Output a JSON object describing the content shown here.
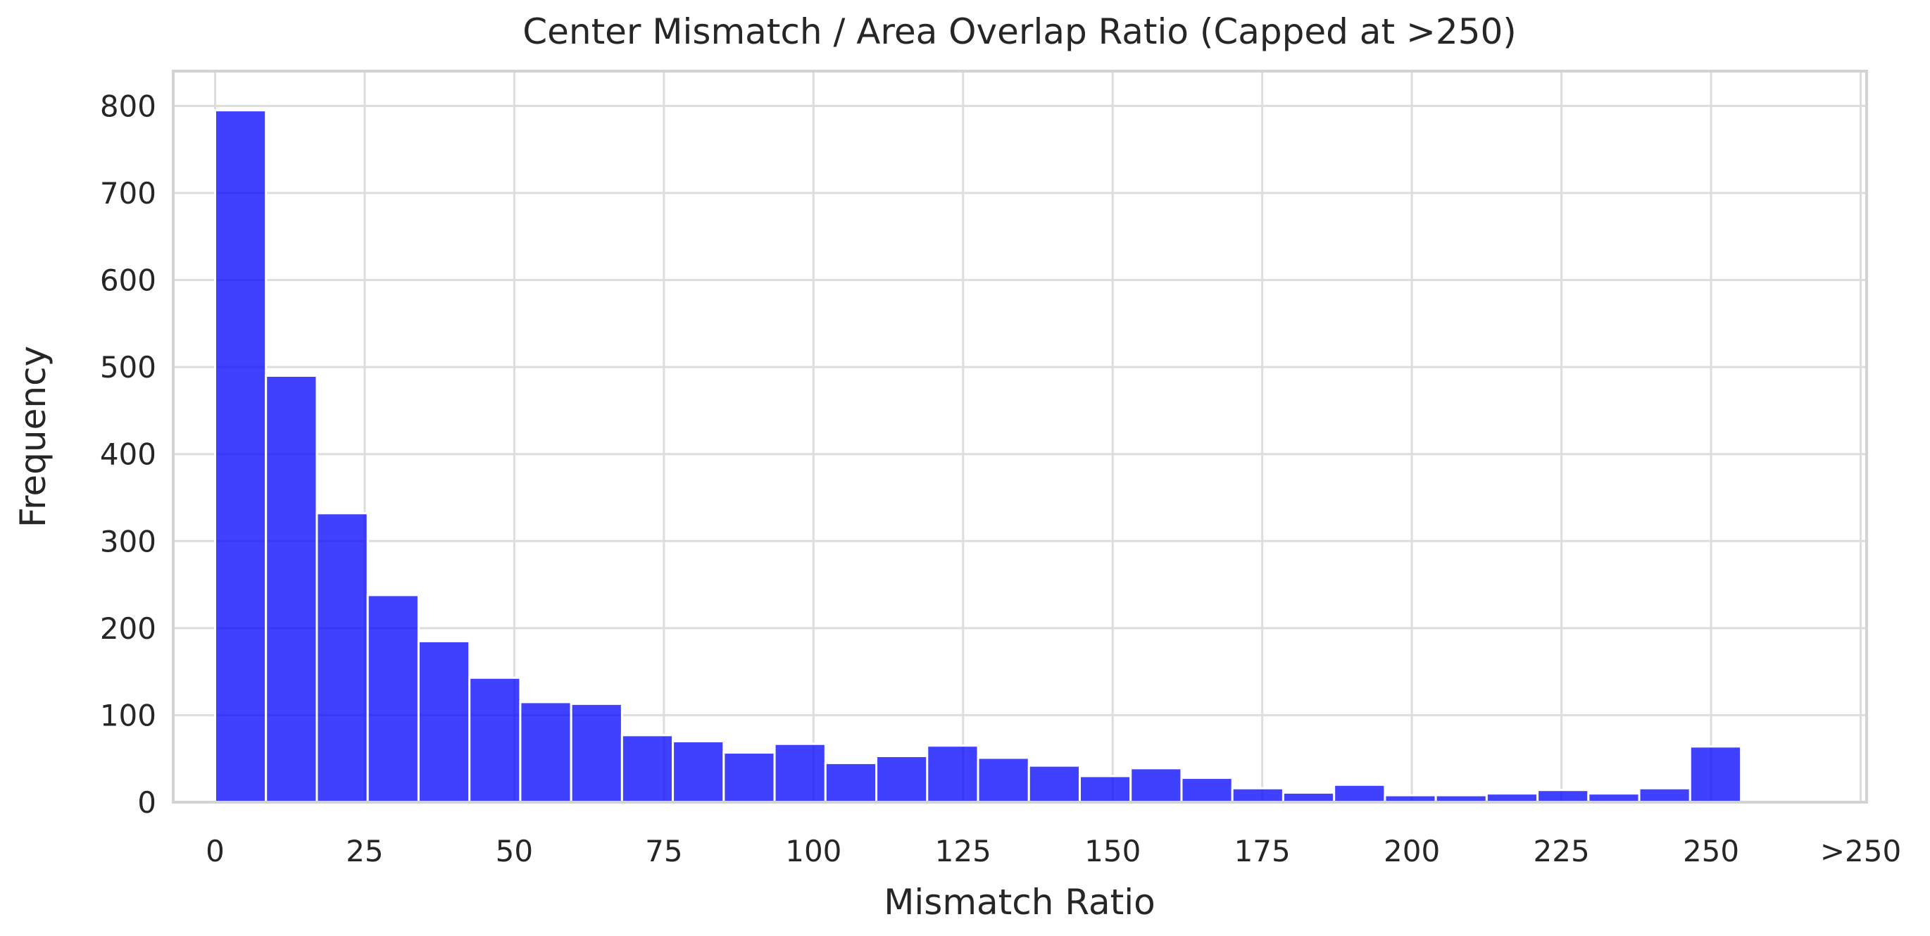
{
  "chart_data": {
    "type": "bar",
    "title": "Center Mismatch / Area Overlap Ratio (Capped at >250)",
    "xlabel": "Mismatch Ratio",
    "ylabel": "Frequency",
    "bin_width": 8.5,
    "bins_start": [
      0,
      8.5,
      17,
      25.5,
      34,
      42.5,
      51,
      59.5,
      68,
      76.5,
      85,
      93.5,
      102,
      110.5,
      119,
      127.5,
      136,
      144.5,
      153,
      161.5,
      170,
      178.5,
      187,
      195.5,
      204,
      212.5,
      221,
      229.5,
      238,
      246.5
    ],
    "values": [
      795,
      490,
      332,
      238,
      185,
      143,
      115,
      113,
      77,
      70,
      57,
      67,
      45,
      53,
      65,
      51,
      42,
      30,
      39,
      28,
      16,
      11,
      20,
      8,
      8,
      10,
      14,
      10,
      16,
      64
    ],
    "xlim": [
      -7,
      276
    ],
    "ylim": [
      0,
      840
    ],
    "x_ticks": [
      0,
      25,
      50,
      75,
      100,
      125,
      150,
      175,
      200,
      225,
      250,
      275
    ],
    "x_tick_labels": [
      "0",
      "25",
      "50",
      "75",
      "100",
      "125",
      "150",
      "175",
      "200",
      "225",
      "250",
      ">250"
    ],
    "y_ticks": [
      0,
      100,
      200,
      300,
      400,
      500,
      600,
      700,
      800
    ],
    "y_tick_labels": [
      "0",
      "100",
      "200",
      "300",
      "400",
      "500",
      "600",
      "700",
      "800"
    ],
    "grid": true,
    "legend": false,
    "bar_color": "#0000ff",
    "bar_opacity": 0.75,
    "bar_edge_color": "#ffffff"
  }
}
